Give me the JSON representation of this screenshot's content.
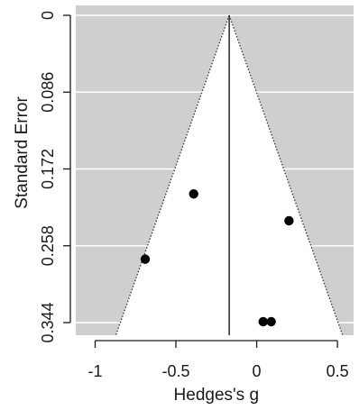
{
  "chart_data": {
    "type": "scatter",
    "subtype": "funnel-plot",
    "xlabel": "Hedges's g",
    "ylabel": "Standard Error",
    "xlim": [
      -1.12,
      0.6
    ],
    "ylim": [
      0.0,
      0.344
    ],
    "y_reversed": true,
    "x_ticks": [
      -1,
      -0.5,
      0,
      0.5
    ],
    "x_tick_labels": [
      "-1",
      "-0.5",
      "0",
      "0.5"
    ],
    "y_ticks": [
      0,
      0.086,
      0.172,
      0.258,
      0.344
    ],
    "y_tick_labels": [
      "0",
      "0.086",
      "0.172",
      "0.258",
      "0.344"
    ],
    "pooled_estimate": -0.17,
    "funnel_half_width_per_se": 1.96,
    "grid": true,
    "colors": {
      "background": "#cfcfcf",
      "funnel_fill": "#ffffff",
      "grid": "#ffffff",
      "points": "#000000",
      "lines": "#333333"
    },
    "points": [
      {
        "x": -0.39,
        "y": 0.2
      },
      {
        "x": 0.2,
        "y": 0.23
      },
      {
        "x": -0.69,
        "y": 0.273
      },
      {
        "x": 0.04,
        "y": 0.343
      },
      {
        "x": 0.09,
        "y": 0.343
      }
    ]
  }
}
